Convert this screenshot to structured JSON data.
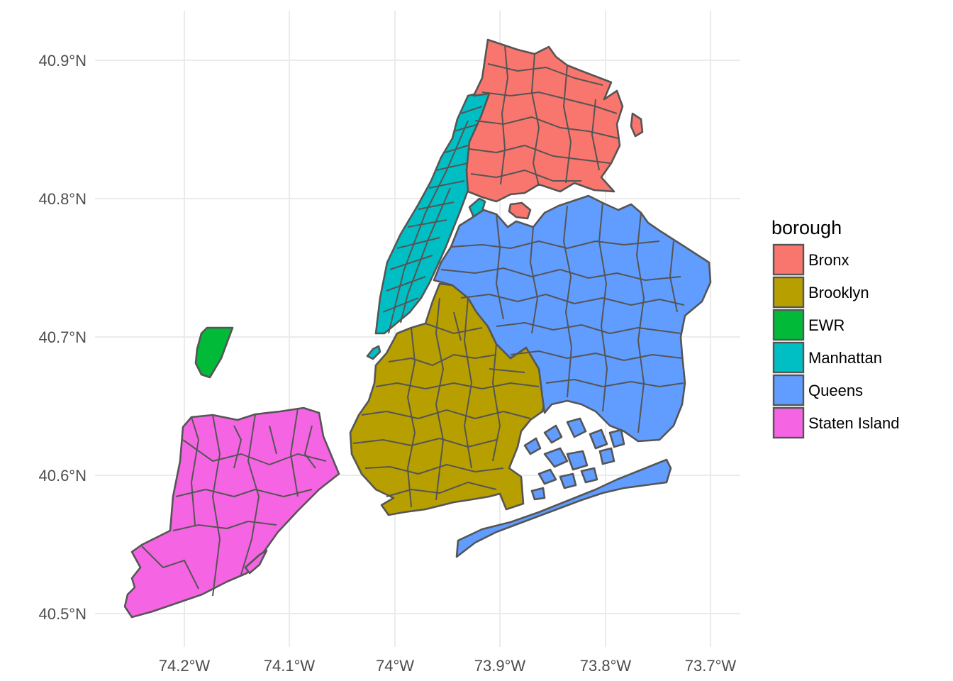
{
  "chart_data": {
    "type": "choropleth-map",
    "x_axis": {
      "ticks": [
        "74.2°W",
        "74.1°W",
        "74°W",
        "73.9°W",
        "73.8°W",
        "73.7°W"
      ],
      "range": [
        -74.27,
        -73.69
      ]
    },
    "y_axis": {
      "ticks": [
        "40.9°N",
        "40.8°N",
        "40.7°N",
        "40.6°N",
        "40.5°N"
      ],
      "range": [
        40.49,
        40.92
      ]
    },
    "grid": true,
    "legend": {
      "title": "borough",
      "position": "right",
      "items": [
        {
          "label": "Bronx",
          "color": "#f8766d"
        },
        {
          "label": "Brooklyn",
          "color": "#b79f00"
        },
        {
          "label": "EWR",
          "color": "#00ba38"
        },
        {
          "label": "Manhattan",
          "color": "#00bfc4"
        },
        {
          "label": "Queens",
          "color": "#619cff"
        },
        {
          "label": "Staten Island",
          "color": "#f564e3"
        }
      ]
    },
    "border_color": "#555555"
  }
}
